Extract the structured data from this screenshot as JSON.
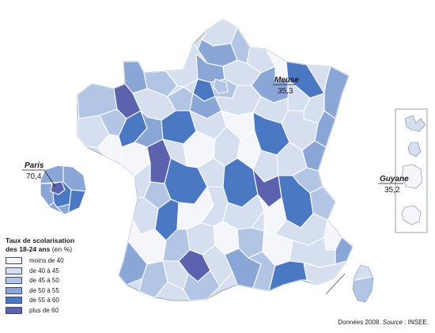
{
  "colors": {
    "c1": "#f4f6fb",
    "c2": "#d5dff0",
    "c3": "#b3c5e4",
    "c4": "#8aa6d6",
    "c5": "#4b78c2",
    "c6": "#5c62ad",
    "dom_frame": "#7b8794",
    "border": "#ffffff"
  },
  "legend": {
    "title_line1": "Taux de scolarisation",
    "title_line2": "des 18-24 ans",
    "title_unit": "(en %)",
    "classes": [
      {
        "label": "moins de 40",
        "color_key": "c1"
      },
      {
        "label": "de 40 à 45",
        "color_key": "c2"
      },
      {
        "label": "de 45 à 50",
        "color_key": "c3"
      },
      {
        "label": "de 50 à 55",
        "color_key": "c4"
      },
      {
        "label": "de 55 à 60",
        "color_key": "c5"
      },
      {
        "label": "plus de 60",
        "color_key": "c6"
      }
    ]
  },
  "annotations": {
    "paris": {
      "name": "Paris",
      "value": "70,4"
    },
    "meuse": {
      "name": "Meuse",
      "value": "35,3"
    },
    "guyane": {
      "name": "Guyane",
      "value": "35,2"
    }
  },
  "source": {
    "prefix": "Données 2008.",
    "label": "Source",
    "text": " : INSEE."
  }
}
